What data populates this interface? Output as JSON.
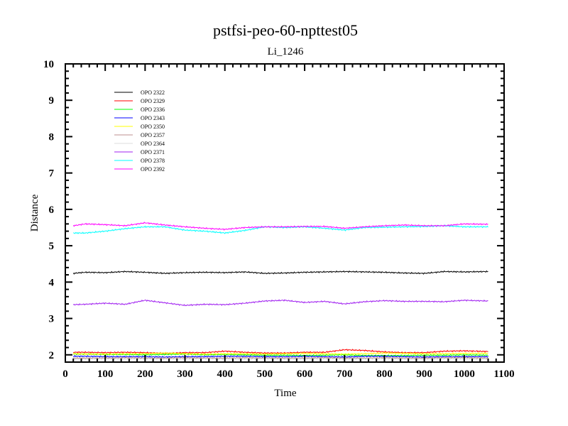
{
  "chart_data": {
    "type": "line",
    "title": "pstfsi-peo-60-npttest05",
    "subtitle": "Li_1246",
    "xlabel": "Time",
    "ylabel": "Distance",
    "xlim": [
      0,
      1100
    ],
    "ylim": [
      1.8,
      10
    ],
    "xticks": [
      "0",
      "100",
      "200",
      "300",
      "400",
      "500",
      "600",
      "700",
      "800",
      "900",
      "1000",
      "1100"
    ],
    "yticks": [
      "2",
      "3",
      "4",
      "5",
      "6",
      "7",
      "8",
      "9",
      "10"
    ],
    "grid": false,
    "legend_position": "top-left",
    "x": [
      20,
      50,
      100,
      150,
      200,
      250,
      300,
      350,
      400,
      450,
      500,
      550,
      600,
      650,
      700,
      750,
      800,
      850,
      900,
      950,
      1000,
      1060
    ],
    "series": [
      {
        "name": "OPO 2322",
        "color": "#000000",
        "values": [
          4.24,
          4.27,
          4.26,
          4.29,
          4.27,
          4.24,
          4.26,
          4.27,
          4.26,
          4.28,
          4.24,
          4.25,
          4.27,
          4.28,
          4.29,
          4.28,
          4.27,
          4.25,
          4.24,
          4.29,
          4.28,
          4.29
        ]
      },
      {
        "name": "OPO 2329",
        "color": "#ff0000",
        "values": [
          2.07,
          2.07,
          2.06,
          2.07,
          2.06,
          2.04,
          2.06,
          2.06,
          2.1,
          2.07,
          2.05,
          2.05,
          2.07,
          2.07,
          2.14,
          2.12,
          2.08,
          2.06,
          2.06,
          2.1,
          2.11,
          2.09
        ]
      },
      {
        "name": "OPO 2336",
        "color": "#00ff00",
        "values": [
          2.02,
          2.02,
          2.01,
          2.01,
          2.0,
          2.01,
          2.02,
          2.0,
          2.01,
          2.0,
          1.99,
          1.99,
          1.98,
          1.99,
          2.0,
          1.98,
          1.98,
          1.98,
          1.99,
          1.99,
          2.0,
          1.99
        ]
      },
      {
        "name": "OPO 2343",
        "color": "#0000ff",
        "values": [
          1.96,
          1.96,
          1.95,
          1.95,
          1.95,
          1.94,
          1.95,
          1.95,
          1.96,
          1.96,
          1.95,
          1.95,
          1.96,
          1.95,
          1.94,
          1.96,
          1.96,
          1.95,
          1.94,
          1.95,
          1.95,
          1.95
        ]
      },
      {
        "name": "OPO 2350",
        "color": "#ffff00",
        "values": [
          2.03,
          2.02,
          2.02,
          2.03,
          2.03,
          2.05,
          2.03,
          2.02,
          2.03,
          2.03,
          2.02,
          2.03,
          2.04,
          2.03,
          2.02,
          2.03,
          2.05,
          2.04,
          2.03,
          2.03,
          2.04,
          2.04
        ]
      },
      {
        "name": "OPO 2357",
        "color": "#bc8f8f",
        "values": [
          1.91,
          1.91,
          1.91,
          1.92,
          1.91,
          1.91,
          1.92,
          1.91,
          1.91,
          1.92,
          1.91,
          1.91,
          1.91,
          1.92,
          1.91,
          1.91,
          1.92,
          1.91,
          1.91,
          1.92,
          1.92,
          1.91
        ]
      },
      {
        "name": "OPO 2364",
        "color": "#dcdcdc",
        "values": [
          1.88,
          1.88,
          1.89,
          1.88,
          1.89,
          1.88,
          1.88,
          1.89,
          1.88,
          1.88,
          1.89,
          1.88,
          1.88,
          1.89,
          1.88,
          1.88,
          1.89,
          1.88,
          1.88,
          1.89,
          1.88,
          1.88
        ]
      },
      {
        "name": "OPO 2371",
        "color": "#a020f0",
        "values": [
          3.38,
          3.39,
          3.42,
          3.39,
          3.5,
          3.43,
          3.36,
          3.39,
          3.38,
          3.42,
          3.48,
          3.5,
          3.44,
          3.47,
          3.4,
          3.46,
          3.49,
          3.47,
          3.47,
          3.46,
          3.5,
          3.48
        ]
      },
      {
        "name": "OPO 2378",
        "color": "#00ffff",
        "values": [
          5.35,
          5.35,
          5.4,
          5.47,
          5.52,
          5.52,
          5.43,
          5.4,
          5.35,
          5.42,
          5.52,
          5.5,
          5.52,
          5.48,
          5.43,
          5.5,
          5.51,
          5.52,
          5.53,
          5.55,
          5.52,
          5.52
        ]
      },
      {
        "name": "OPO 2392",
        "color": "#ff00ff",
        "values": [
          5.55,
          5.6,
          5.58,
          5.55,
          5.63,
          5.57,
          5.52,
          5.48,
          5.45,
          5.5,
          5.52,
          5.52,
          5.53,
          5.53,
          5.48,
          5.52,
          5.55,
          5.57,
          5.55,
          5.55,
          5.6,
          5.59
        ]
      }
    ]
  }
}
